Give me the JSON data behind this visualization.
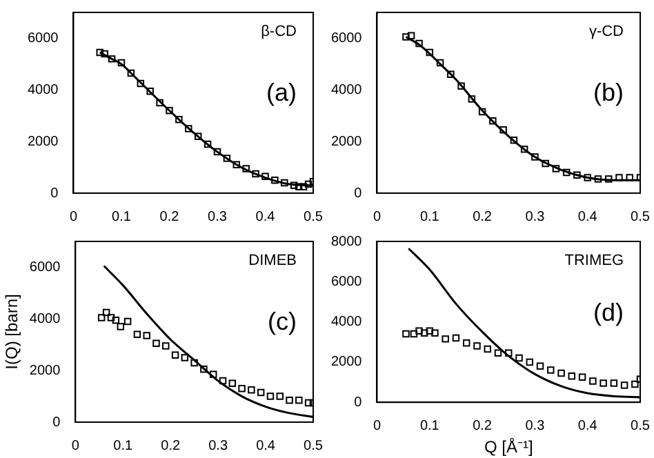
{
  "chart_data": [
    {
      "type": "scatter",
      "annotations": [
        "β-CD",
        "(a)"
      ],
      "xlim": [
        0,
        0.5
      ],
      "xticks": [
        0,
        0.1,
        0.2,
        0.3,
        0.4,
        0.5
      ],
      "ylim": [
        0,
        7000
      ],
      "yticks": [
        0,
        2000,
        4000,
        6000
      ],
      "grid": false,
      "legend": false,
      "series": [
        {
          "color": "#000000",
          "marker": "square",
          "x": [
            0.055,
            0.065,
            0.08,
            0.1,
            0.12,
            0.14,
            0.16,
            0.18,
            0.2,
            0.22,
            0.24,
            0.26,
            0.28,
            0.3,
            0.32,
            0.34,
            0.36,
            0.38,
            0.4,
            0.42,
            0.44,
            0.46,
            0.47,
            0.48,
            0.49,
            0.5
          ],
          "values": [
            5450,
            5400,
            5200,
            5050,
            4650,
            4250,
            3950,
            3500,
            3200,
            2850,
            2500,
            2200,
            1900,
            1600,
            1350,
            1100,
            950,
            750,
            650,
            500,
            400,
            300,
            250,
            250,
            350,
            450
          ]
        },
        {
          "type": "line",
          "marker": "none",
          "color": "#000000",
          "x": [
            0.055,
            0.08,
            0.1,
            0.12,
            0.15,
            0.2,
            0.25,
            0.3,
            0.35,
            0.4,
            0.45,
            0.5
          ],
          "values": [
            5450,
            5200,
            5000,
            4650,
            4100,
            3200,
            2350,
            1600,
            1000,
            600,
            350,
            300
          ]
        }
      ]
    },
    {
      "type": "scatter",
      "annotations": [
        "γ-CD",
        "(b)"
      ],
      "xlim": [
        0,
        0.5
      ],
      "xticks": [
        0,
        0.1,
        0.2,
        0.3,
        0.4,
        0.5
      ],
      "ylim": [
        0,
        7000
      ],
      "yticks": [
        0,
        2000,
        4000,
        6000
      ],
      "grid": false,
      "legend": false,
      "series": [
        {
          "color": "#000000",
          "marker": "square",
          "x": [
            0.055,
            0.065,
            0.08,
            0.1,
            0.12,
            0.14,
            0.16,
            0.18,
            0.2,
            0.22,
            0.24,
            0.26,
            0.28,
            0.3,
            0.32,
            0.34,
            0.36,
            0.38,
            0.4,
            0.42,
            0.44,
            0.46,
            0.48,
            0.5
          ],
          "values": [
            6050,
            6100,
            5800,
            5450,
            5050,
            4600,
            4150,
            3650,
            3150,
            2800,
            2450,
            2050,
            1700,
            1400,
            1150,
            950,
            800,
            700,
            600,
            550,
            550,
            600,
            600,
            600
          ]
        },
        {
          "type": "line",
          "marker": "none",
          "color": "#000000",
          "x": [
            0.055,
            0.08,
            0.1,
            0.12,
            0.15,
            0.2,
            0.25,
            0.3,
            0.35,
            0.4,
            0.45,
            0.5
          ],
          "values": [
            6050,
            5750,
            5400,
            5000,
            4400,
            3200,
            2200,
            1400,
            900,
            600,
            500,
            500
          ]
        }
      ]
    },
    {
      "type": "scatter",
      "ylabel": "I(Q) [barn]",
      "annotations": [
        "DIMEB",
        "(c)"
      ],
      "xlim": [
        0,
        0.5
      ],
      "xticks": [
        0,
        0.1,
        0.2,
        0.3,
        0.4,
        0.5
      ],
      "ylim": [
        0,
        7000
      ],
      "yticks": [
        0,
        2000,
        4000,
        6000
      ],
      "grid": false,
      "legend": false,
      "series": [
        {
          "color": "#000000",
          "marker": "square",
          "x": [
            0.055,
            0.065,
            0.075,
            0.085,
            0.095,
            0.11,
            0.13,
            0.15,
            0.17,
            0.19,
            0.21,
            0.23,
            0.25,
            0.27,
            0.29,
            0.31,
            0.33,
            0.35,
            0.37,
            0.39,
            0.41,
            0.43,
            0.45,
            0.47,
            0.49,
            0.5
          ],
          "values": [
            4050,
            4250,
            4050,
            3950,
            3700,
            3900,
            3400,
            3350,
            3050,
            2950,
            2600,
            2500,
            2300,
            2050,
            1850,
            1600,
            1500,
            1300,
            1250,
            1150,
            1000,
            1000,
            850,
            850,
            750,
            750
          ]
        },
        {
          "type": "line",
          "marker": "none",
          "color": "#000000",
          "x": [
            0.06,
            0.1,
            0.15,
            0.2,
            0.25,
            0.3,
            0.35,
            0.4,
            0.45,
            0.5
          ],
          "values": [
            6050,
            5300,
            4200,
            3200,
            2400,
            1600,
            1000,
            600,
            350,
            200
          ]
        }
      ]
    },
    {
      "type": "scatter",
      "xlabel": "Q [Å⁻¹]",
      "annotations": [
        "TRIMEG",
        "(d)"
      ],
      "xlim": [
        0,
        0.5
      ],
      "xticks": [
        0,
        0.1,
        0.2,
        0.3,
        0.4,
        0.5
      ],
      "ylim": [
        0,
        8000
      ],
      "yticks": [
        0,
        2000,
        4000,
        6000,
        8000
      ],
      "grid": false,
      "legend": false,
      "series": [
        {
          "color": "#000000",
          "marker": "square",
          "x": [
            0.055,
            0.07,
            0.08,
            0.09,
            0.1,
            0.11,
            0.13,
            0.15,
            0.17,
            0.19,
            0.21,
            0.23,
            0.25,
            0.27,
            0.29,
            0.31,
            0.33,
            0.35,
            0.37,
            0.39,
            0.41,
            0.43,
            0.45,
            0.47,
            0.49,
            0.5
          ],
          "values": [
            3400,
            3400,
            3550,
            3450,
            3550,
            3450,
            3150,
            3200,
            2950,
            2800,
            2650,
            2450,
            2450,
            2200,
            2000,
            1800,
            1600,
            1450,
            1300,
            1250,
            1050,
            950,
            950,
            850,
            900,
            1150
          ]
        },
        {
          "type": "line",
          "marker": "none",
          "color": "#000000",
          "x": [
            0.06,
            0.1,
            0.15,
            0.2,
            0.25,
            0.3,
            0.35,
            0.4,
            0.45,
            0.5
          ],
          "values": [
            7650,
            6600,
            4900,
            3500,
            2300,
            1400,
            800,
            450,
            300,
            250
          ]
        }
      ]
    }
  ]
}
